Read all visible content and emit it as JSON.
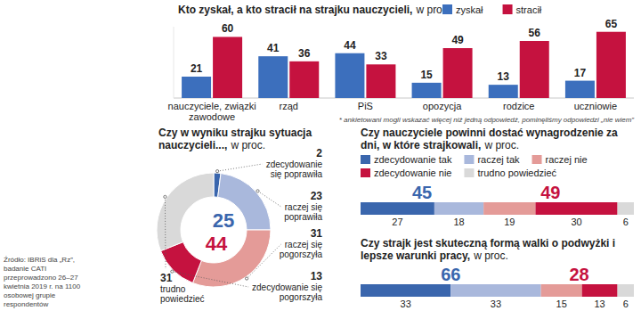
{
  "chart_data": [
    {
      "type": "bar",
      "title": "Kto zyskał, a kto stracił na strajku nauczycieli,",
      "subtitle": "w proc.",
      "categories": [
        "nauczyciele, związki zawodowe",
        "rząd",
        "PiS",
        "opozycja",
        "rodzice",
        "uczniowie"
      ],
      "series": [
        {
          "name": "zyskał",
          "color": "#3c6fbd",
          "values": [
            21,
            41,
            44,
            15,
            13,
            17
          ]
        },
        {
          "name": "stracił",
          "color": "#c5123f",
          "values": [
            60,
            36,
            33,
            49,
            56,
            65
          ]
        }
      ],
      "ylim": [
        0,
        70
      ],
      "legend": "top-right",
      "data_labels": true,
      "tick_labels": "x",
      "note": "* ankietowani mogli wskazać więcej niż jedną odpowiedź, pominęliśmy odpowiedzi „nie wiem”"
    },
    {
      "type": "donut",
      "title": "Czy w wyniku strajku sytuacja nauczycieli...,",
      "subtitle": "w proc.",
      "categories": [
        "zdecydowanie się poprawiła",
        "raczej się poprawiła",
        "raczej się pogorszyła",
        "zdecydowanie się pogorszyła",
        "trudno powiedzieć"
      ],
      "values": [
        2,
        23,
        31,
        13,
        31
      ],
      "colors": [
        "#3a66ad",
        "#a9b8dc",
        "#e49b98",
        "#c5123f",
        "#d9d9d9"
      ],
      "data_labels": true,
      "totals": [
        {
          "value": 25,
          "color": "#3a66ad"
        },
        {
          "value": 44,
          "color": "#c5123f"
        }
      ]
    },
    {
      "type": "bar",
      "orientation": "horizontal",
      "stacked": true,
      "subtitle": "w proc.",
      "categories": [
        "Czy nauczyciele powinni dostać wynagrodzenie za dni, w które strajkowali,",
        "Czy strajk jest skuteczną formą walki o podwyżki i lepsze warunki pracy,"
      ],
      "series": [
        {
          "name": "zdecydowanie tak",
          "color": "#3a66ad",
          "values": [
            27,
            33
          ]
        },
        {
          "name": "raczej tak",
          "color": "#a9b8dc",
          "values": [
            18,
            33
          ]
        },
        {
          "name": "raczej nie",
          "color": "#e49b98",
          "values": [
            19,
            15
          ]
        },
        {
          "name": "zdecydowanie nie",
          "color": "#c5123f",
          "values": [
            30,
            13
          ]
        },
        {
          "name": "trudno powiedzieć",
          "color": "#d9d9d9",
          "values": [
            6,
            6
          ]
        }
      ],
      "xlim": [
        0,
        100
      ],
      "legend": "top",
      "data_labels": true,
      "tick_labels": "y",
      "totals": [
        {
          "color": "#3a66ad",
          "values": [
            45,
            66
          ]
        },
        {
          "color": "#c5123f",
          "values": [
            49,
            28
          ]
        }
      ]
    }
  ],
  "source": "Źródło: IBRiS dla „Rz”, badanie CATI przeprowadzono 26–27 kwietnia 2019 r. na 1100 osobowej grupie respondentów"
}
